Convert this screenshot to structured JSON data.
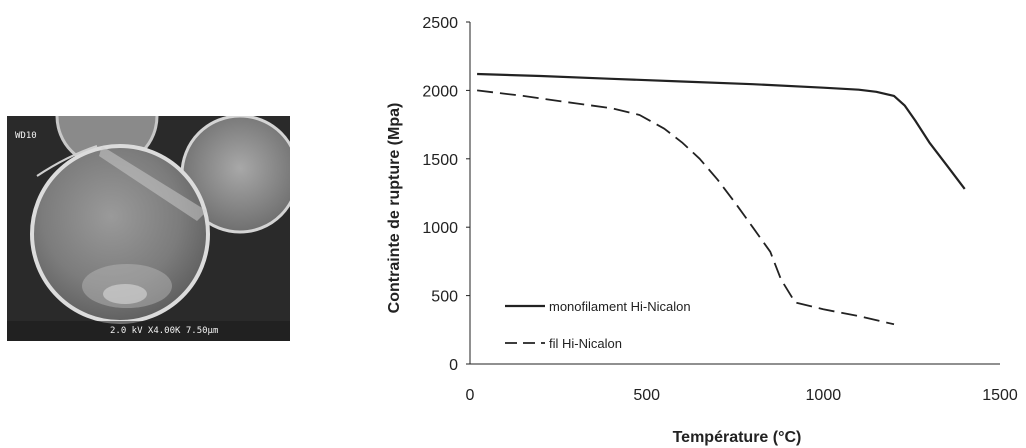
{
  "sem_micrograph": {
    "label_top": "WD10",
    "scale_info": "2.0 kV X4.00K 7.50µm"
  },
  "chart_data": {
    "type": "line",
    "title": "",
    "xlabel": "Température (°C)",
    "ylabel": "Contrainte de rupture (Mpa)",
    "xlim": [
      0,
      1500
    ],
    "ylim": [
      0,
      2500
    ],
    "xticks": [
      "0",
      "500",
      "1000",
      "1500"
    ],
    "yticks": [
      "0",
      "500",
      "1000",
      "1500",
      "2000",
      "2500"
    ],
    "grid": false,
    "legend_position": "bottom-left",
    "series": [
      {
        "name": "monofilament Hi-Nicalon",
        "style": "solid",
        "color": "#222222",
        "x": [
          20,
          200,
          400,
          600,
          800,
          1000,
          1100,
          1150,
          1200,
          1230,
          1260,
          1300,
          1350,
          1400
        ],
        "y": [
          2120,
          2105,
          2085,
          2065,
          2045,
          2020,
          2005,
          1990,
          1960,
          1890,
          1780,
          1620,
          1450,
          1280
        ]
      },
      {
        "name": "fil Hi-Nicalon",
        "style": "dashed",
        "color": "#222222",
        "x": [
          20,
          150,
          300,
          400,
          480,
          550,
          600,
          650,
          700,
          750,
          800,
          850,
          880,
          920,
          1000,
          1100,
          1200
        ],
        "y": [
          2000,
          1960,
          1905,
          1870,
          1820,
          1720,
          1620,
          1500,
          1350,
          1180,
          1000,
          820,
          620,
          450,
          400,
          350,
          290
        ]
      }
    ]
  }
}
